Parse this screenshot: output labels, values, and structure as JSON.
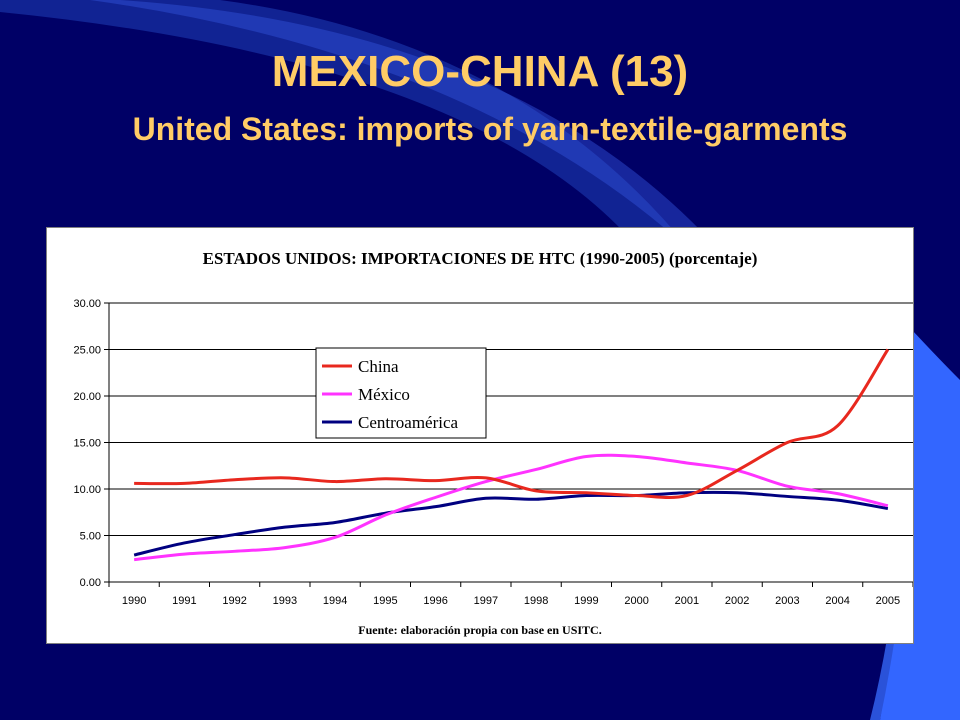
{
  "slide": {
    "title": "MEXICO-CHINA (13)",
    "subtitle": "United States: imports of yarn-textile-garments",
    "background_color": "#000066",
    "title_color": "#ffcc66"
  },
  "chart_data": {
    "type": "line",
    "title": "ESTADOS UNIDOS: IMPORTACIONES DE HTC (1990-2005) (porcentaje)",
    "note": "Fuente: elaboración propia con base en USITC.",
    "xlabel": "",
    "ylabel": "",
    "x": [
      "1990",
      "1991",
      "1992",
      "1993",
      "1994",
      "1995",
      "1996",
      "1997",
      "1998",
      "1999",
      "2000",
      "2001",
      "2002",
      "2003",
      "2004",
      "2005"
    ],
    "ylim": [
      0,
      30
    ],
    "yticks": [
      "0.00",
      "5.00",
      "10.00",
      "15.00",
      "20.00",
      "25.00",
      "30.00"
    ],
    "grid": true,
    "legend_position": "upper-left-center",
    "series": [
      {
        "name": "China",
        "color": "#e8281e",
        "values": [
          10.6,
          10.6,
          11.0,
          11.2,
          10.8,
          11.1,
          10.9,
          11.2,
          9.8,
          9.6,
          9.3,
          9.3,
          12.0,
          15.0,
          16.8,
          25.0
        ]
      },
      {
        "name": "México",
        "color": "#ff33ff",
        "values": [
          2.4,
          3.0,
          3.3,
          3.7,
          4.8,
          7.2,
          9.1,
          10.8,
          12.1,
          13.5,
          13.5,
          12.8,
          12.0,
          10.3,
          9.5,
          8.2
        ]
      },
      {
        "name": "Centroamérica",
        "color": "#000080",
        "values": [
          2.9,
          4.2,
          5.1,
          5.9,
          6.4,
          7.4,
          8.1,
          9.0,
          8.9,
          9.3,
          9.3,
          9.6,
          9.6,
          9.2,
          8.8,
          7.9
        ]
      }
    ]
  }
}
